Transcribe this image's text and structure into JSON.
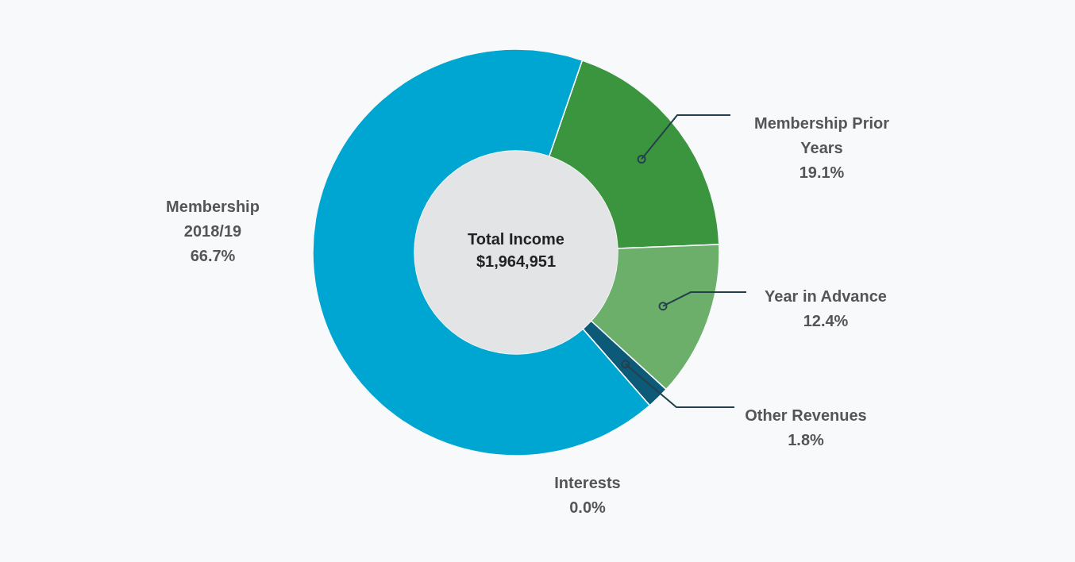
{
  "chart_data": {
    "type": "donut",
    "categories": [
      "Membership Prior Years",
      "Year in Advance",
      "Other Revenues",
      "Interests",
      "Membership 2018/19"
    ],
    "values": [
      19.1,
      12.4,
      1.8,
      0.0,
      66.7
    ],
    "colors": [
      "#3b953f",
      "#6caf6b",
      "#0d5a78",
      "#0b4f6a",
      "#00a6d2"
    ],
    "value_labels": [
      "19.1%",
      "12.4%",
      "1.8%",
      "0.0%",
      "66.7%"
    ],
    "annotations": [
      "Total Income",
      "$1,964,951"
    ]
  }
}
